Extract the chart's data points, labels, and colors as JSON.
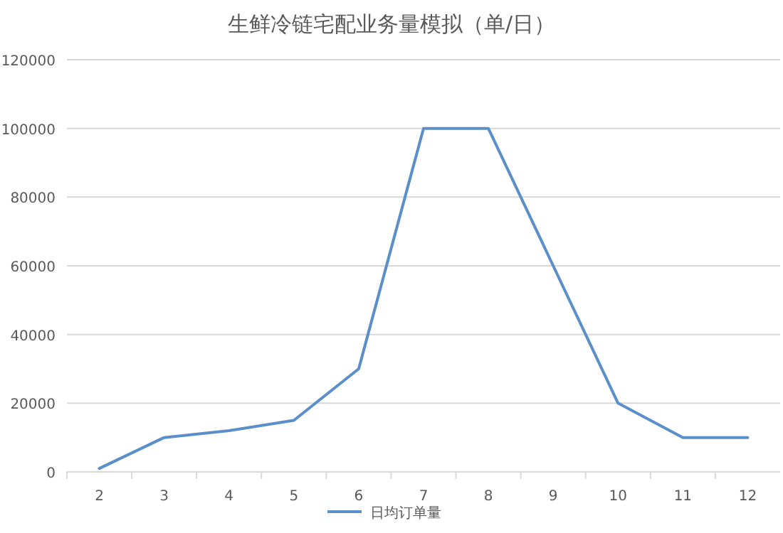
{
  "chart_data": {
    "type": "line",
    "title": "生鲜冷链宅配业务量模拟（单/日）",
    "categories": [
      "2",
      "3",
      "4",
      "5",
      "6",
      "7",
      "8",
      "9",
      "10",
      "11",
      "12"
    ],
    "series": [
      {
        "name": "日均订单量",
        "color": "#5b8fc9",
        "values": [
          1000,
          10000,
          12000,
          15000,
          30000,
          100000,
          100000,
          60000,
          20000,
          10000,
          10000
        ]
      }
    ],
    "ylim": [
      0,
      120000
    ],
    "yticks": [
      0,
      20000,
      40000,
      60000,
      80000,
      100000,
      120000
    ],
    "grid": "y",
    "legend": "bottom"
  }
}
